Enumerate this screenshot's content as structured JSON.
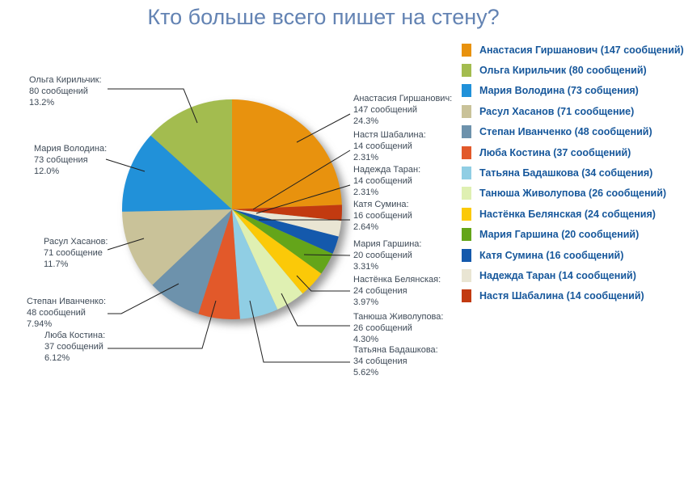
{
  "chart_data": {
    "type": "pie",
    "title": "Кто больше всего пишет на стену?",
    "legend_position": "right",
    "slices": [
      {
        "name": "Анастасия Гиршанович",
        "value": 147,
        "callout_name": "Анастасия Гиршанович:",
        "callout_count": "147 сообщений",
        "callout_percent": "24.3%",
        "color": "#E8920E"
      },
      {
        "name": "Настя Шабалина",
        "value": 14,
        "callout_name": "Настя Шабалина:",
        "callout_count": "14 сообщений",
        "callout_percent": "2.31%",
        "color": "#C23A10"
      },
      {
        "name": "Надежда Таран",
        "value": 14,
        "callout_name": "Надежда Таран:",
        "callout_count": "14 сообщений",
        "callout_percent": "2.31%",
        "color": "#E9E5D3"
      },
      {
        "name": "Катя Сумина",
        "value": 16,
        "callout_name": "Катя Сумина:",
        "callout_count": "16 сообщений",
        "callout_percent": "2.64%",
        "color": "#1459AC"
      },
      {
        "name": "Мария Гаршина",
        "value": 20,
        "callout_name": "Мария Гаршина:",
        "callout_count": "20 сообщений",
        "callout_percent": "3.31%",
        "color": "#64A51A"
      },
      {
        "name": "Настёнка Белянская",
        "value": 24,
        "callout_name": "Настёнка Белянская:",
        "callout_count": "24 собщения",
        "callout_percent": "3.97%",
        "color": "#FBC908"
      },
      {
        "name": "Танюша Живолупова",
        "value": 26,
        "callout_name": "Танюша Живолупова:",
        "callout_count": "26 сообщений",
        "callout_percent": "4.30%",
        "color": "#DFF0B2"
      },
      {
        "name": "Татьяна Бадашкова",
        "value": 34,
        "callout_name": "Татьяна Бадашкова:",
        "callout_count": "34 собщения",
        "callout_percent": "5.62%",
        "color": "#90CEE4"
      },
      {
        "name": "Люба Костина",
        "value": 37,
        "callout_name": "Люба Костина:",
        "callout_count": "37 сообщений",
        "callout_percent": "6.12%",
        "color": "#E2592A"
      },
      {
        "name": "Степан Иванченко",
        "value": 48,
        "callout_name": "Степан Иванченко:",
        "callout_count": "48 сообщений",
        "callout_percent": "7.94%",
        "color": "#6D92AC"
      },
      {
        "name": "Расул Хасанов",
        "value": 71,
        "callout_name": "Расул Хасанов:",
        "callout_count": "71 сообщение",
        "callout_percent": "11.7%",
        "color": "#C9C299"
      },
      {
        "name": "Мария Володина",
        "value": 73,
        "callout_name": "Мария Володина:",
        "callout_count": "73 собщения",
        "callout_percent": "12.0%",
        "color": "#2191D9"
      },
      {
        "name": "Ольга Кирильчик",
        "value": 80,
        "callout_name": "Ольга Кирильчик:",
        "callout_count": "80 сообщений",
        "callout_percent": "13.2%",
        "color": "#A3BC4F"
      }
    ],
    "legend": [
      {
        "label": "Анастасия Гиршанович (147 сообщений)",
        "color": "#E8920E"
      },
      {
        "label": "Ольга Кирильчик (80 сообщений)",
        "color": "#A3BC4F"
      },
      {
        "label": "Мария Володина (73 собщения)",
        "color": "#2191D9"
      },
      {
        "label": "Расул Хасанов (71 сообщение)",
        "color": "#C9C299"
      },
      {
        "label": "Степан Иванченко (48 сообщений)",
        "color": "#6D92AC"
      },
      {
        "label": "Люба Костина (37 сообщений)",
        "color": "#E2592A"
      },
      {
        "label": "Татьяна Бадашкова (34 собщения)",
        "color": "#90CEE4"
      },
      {
        "label": "Танюша Живолупова (26 сообщений)",
        "color": "#DFF0B2"
      },
      {
        "label": "Настёнка Белянская (24 собщения)",
        "color": "#FBC908"
      },
      {
        "label": "Мария Гаршина (20 сообщений)",
        "color": "#64A51A"
      },
      {
        "label": "Катя Сумина (16 сообщений)",
        "color": "#1459AC"
      },
      {
        "label": "Надежда Таран (14 сообщений)",
        "color": "#E9E5D3"
      },
      {
        "label": "Настя Шабалина (14 сообщений)",
        "color": "#C23A10"
      }
    ]
  }
}
